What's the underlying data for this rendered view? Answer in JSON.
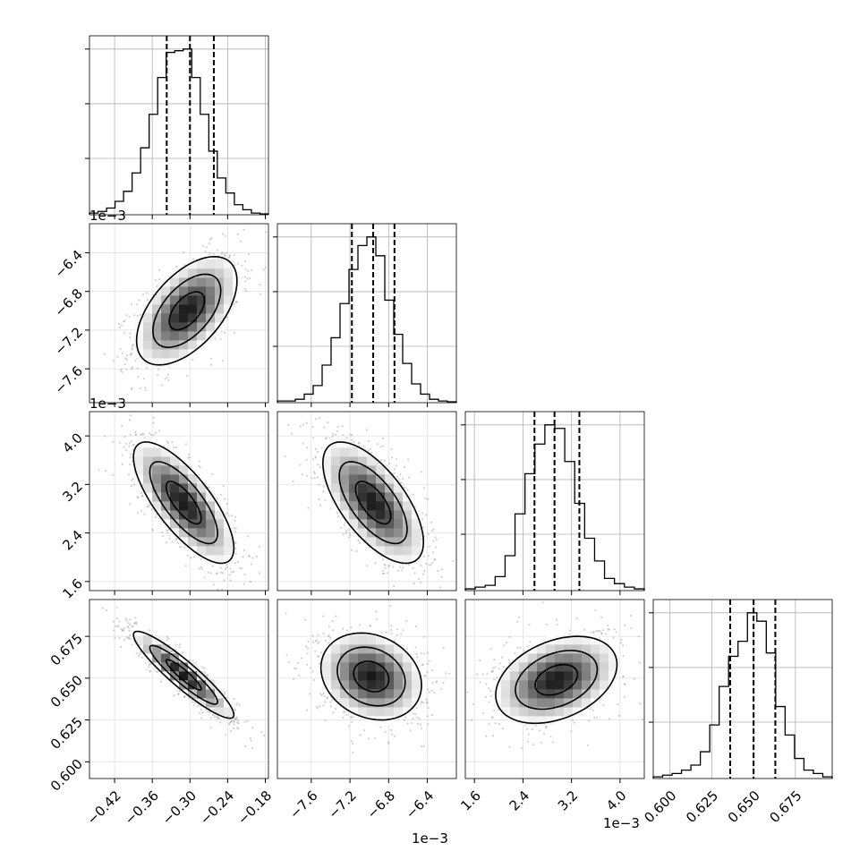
{
  "chart_data": {
    "type": "corner",
    "parameters": 4,
    "offset_label": "1e−3",
    "grid": true,
    "quantile_style": "dashed",
    "axes": [
      {
        "index": 0,
        "range": [
          -0.46,
          -0.175
        ],
        "ticks": [
          -0.42,
          -0.36,
          -0.3,
          -0.24,
          -0.18
        ],
        "tick_labels": [
          "−0.42",
          "−0.36",
          "−0.30",
          "−0.24",
          "−0.18"
        ],
        "quantiles": [
          -0.337,
          -0.3,
          -0.262
        ],
        "offset_label": ""
      },
      {
        "index": 1,
        "range": [
          -7.95,
          -6.1
        ],
        "ticks": [
          -7.6,
          -7.2,
          -6.8,
          -6.4
        ],
        "tick_labels": [
          "−7.6",
          "−7.2",
          "−6.8",
          "−6.4"
        ],
        "quantiles": [
          -7.18,
          -6.96,
          -6.74
        ],
        "offset_label": "1e−3"
      },
      {
        "index": 2,
        "range": [
          1.45,
          4.4
        ],
        "ticks": [
          1.6,
          2.4,
          3.2,
          4.0
        ],
        "tick_labels": [
          "1.6",
          "2.4",
          "3.2",
          "4.0"
        ],
        "quantiles": [
          2.59,
          2.92,
          3.33
        ],
        "offset_label": "1e−3"
      },
      {
        "index": 3,
        "range": [
          0.59,
          0.697
        ],
        "ticks": [
          0.6,
          0.625,
          0.65,
          0.675
        ],
        "tick_labels": [
          "0.600",
          "0.625",
          "0.650",
          "0.675"
        ],
        "quantiles": [
          0.636,
          0.65,
          0.663
        ],
        "offset_label": ""
      }
    ],
    "histograms": [
      {
        "index": 0,
        "counts": [
          1,
          2,
          4,
          8,
          14,
          25,
          40,
          60,
          82,
          97,
          98,
          99,
          82,
          60,
          38,
          22,
          13,
          6,
          3,
          1,
          0.5
        ]
      },
      {
        "index": 1,
        "counts": [
          1,
          1,
          2,
          5,
          10,
          22,
          38,
          58,
          78,
          92,
          97,
          86,
          60,
          40,
          23,
          11,
          5,
          2,
          1,
          0.5
        ]
      },
      {
        "index": 2,
        "counts": [
          1,
          2,
          3,
          8,
          20,
          44,
          67,
          84,
          95,
          93,
          74,
          50,
          30,
          17,
          7,
          4,
          2,
          1
        ]
      },
      {
        "index": 3,
        "counts": [
          1,
          2,
          3,
          5,
          8,
          16,
          32,
          55,
          73,
          82,
          99,
          94,
          75,
          43,
          26,
          12,
          5,
          3,
          1
        ]
      }
    ],
    "pairs": [
      {
        "row": 1,
        "col": 0,
        "center": [
          -0.305,
          -7.0
        ],
        "sd": [
          0.04,
          0.28
        ],
        "rho": 0.55
      },
      {
        "row": 2,
        "col": 0,
        "center": [
          -0.31,
          2.9
        ],
        "sd": [
          0.04,
          0.5
        ],
        "rho": -0.75
      },
      {
        "row": 2,
        "col": 1,
        "center": [
          -6.96,
          2.9
        ],
        "sd": [
          0.26,
          0.5
        ],
        "rho": -0.65
      },
      {
        "row": 3,
        "col": 0,
        "center": [
          -0.31,
          0.652
        ],
        "sd": [
          0.04,
          0.013
        ],
        "rho": -0.92
      },
      {
        "row": 3,
        "col": 1,
        "center": [
          -6.98,
          0.651
        ],
        "sd": [
          0.26,
          0.013
        ],
        "rho": -0.2
      },
      {
        "row": 3,
        "col": 2,
        "center": [
          2.95,
          0.649
        ],
        "sd": [
          0.5,
          0.013
        ],
        "rho": 0.35
      }
    ]
  }
}
